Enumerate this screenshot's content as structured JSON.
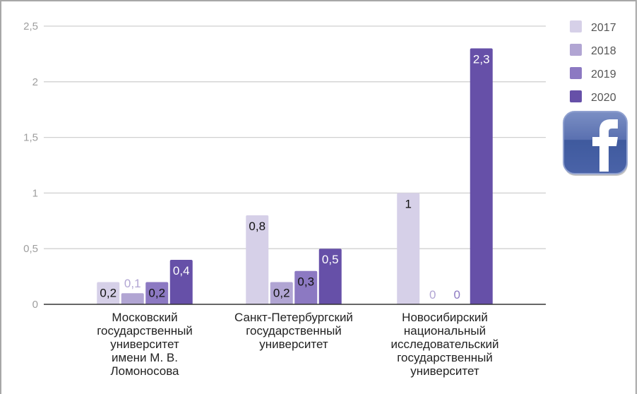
{
  "chart_data": {
    "type": "bar",
    "title": "",
    "xlabel": "",
    "ylabel": "",
    "ylim": [
      0,
      2.5
    ],
    "yticks": [
      0,
      0.5,
      1,
      1.5,
      2,
      2.5
    ],
    "ytick_labels": [
      "0",
      "0,5",
      "1",
      "1,5",
      "2",
      "2,5"
    ],
    "grid": true,
    "legend_position": "top-right",
    "categories": [
      [
        "Московский",
        "государственный",
        "университет",
        "имени М. В.",
        "Ломоносова"
      ],
      [
        "Санкт-Петербургский",
        "государственный",
        "университет"
      ],
      [
        "Новосибирский",
        "национальный",
        "исследовательский",
        "государственный",
        "университет"
      ]
    ],
    "series": [
      {
        "name": "2017",
        "color": "#d6d0e8",
        "values": [
          0.2,
          0.8,
          1
        ],
        "labels": [
          "0,2",
          "0,8",
          "1"
        ]
      },
      {
        "name": "2018",
        "color": "#b1a5d3",
        "values": [
          0.1,
          0.2,
          0
        ],
        "labels": [
          "0,1",
          "0,2",
          "0"
        ]
      },
      {
        "name": "2019",
        "color": "#8c79c2",
        "values": [
          0.2,
          0.3,
          0
        ],
        "labels": [
          "0,2",
          "0,3",
          "0"
        ]
      },
      {
        "name": "2020",
        "color": "#6650a8",
        "values": [
          0.4,
          0.5,
          2.3
        ],
        "labels": [
          "0,4",
          "0,5",
          "2,3"
        ]
      }
    ]
  },
  "legend": {
    "items": [
      "2017",
      "2018",
      "2019",
      "2020"
    ]
  },
  "overlay": {
    "icon": "facebook-icon",
    "brand_color": "#3b5998"
  }
}
